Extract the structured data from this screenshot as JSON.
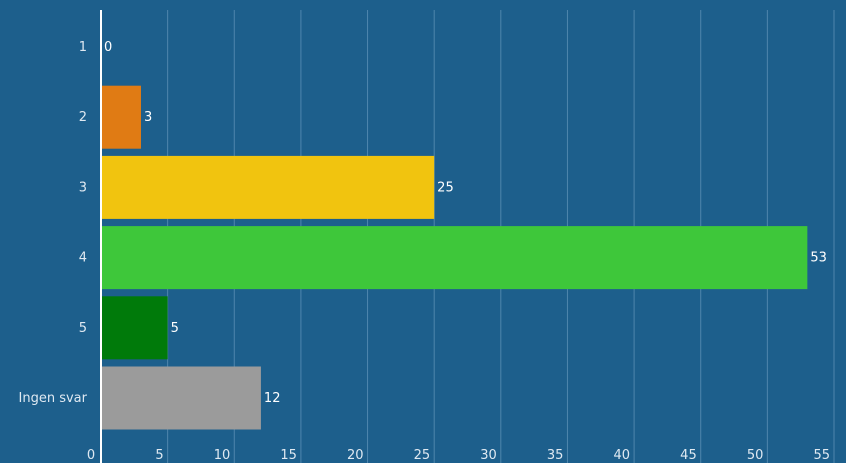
{
  "chart_data": {
    "type": "bar",
    "orientation": "horizontal",
    "categories": [
      "1",
      "2",
      "3",
      "4",
      "5",
      "Ingen svar"
    ],
    "values": [
      0,
      3,
      25,
      53,
      5,
      12
    ],
    "colors": [
      "#e07b14",
      "#e07b14",
      "#f1c40f",
      "#3ec73a",
      "#007a0a",
      "#9b9b9b"
    ],
    "xlim": [
      0,
      55
    ],
    "xticks": [
      0,
      5,
      10,
      15,
      20,
      25,
      30,
      35,
      40,
      45,
      50,
      55
    ],
    "grid": true,
    "title": "",
    "xlabel": "",
    "ylabel": ""
  },
  "colors": {
    "background": "#1d5f8c",
    "gridline": "#4f86ad",
    "axis": "#ffffff"
  }
}
